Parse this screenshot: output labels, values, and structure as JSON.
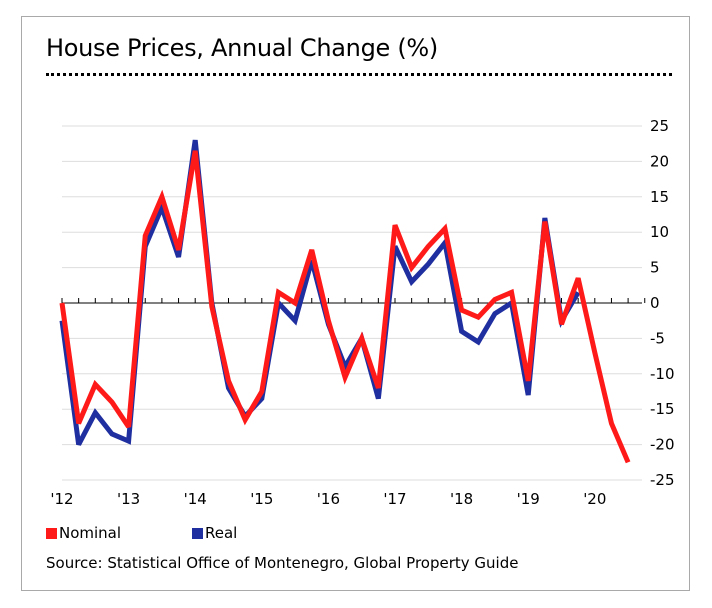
{
  "chart_data": {
    "type": "line",
    "title": "House Prices, Annual Change (%)",
    "ylim": [
      -25,
      25
    ],
    "yticks": [
      25,
      20,
      15,
      10,
      5,
      0,
      -5,
      -10,
      -15,
      -20,
      -25
    ],
    "ytick_labels": [
      "25",
      "20",
      "15",
      "10",
      "5",
      "0",
      "-5",
      "-10",
      "-15",
      "-20",
      "-25"
    ],
    "xtick_labels": [
      "'12",
      "'13",
      "'14",
      "'15",
      "'16",
      "'17",
      "'18",
      "'19",
      "'20"
    ],
    "grid": true,
    "legend_position": "bottom-left",
    "x": [
      "2012 Q1",
      "2012 Q2",
      "2012 Q3",
      "2012 Q4",
      "2013 Q1",
      "2013 Q2",
      "2013 Q3",
      "2013 Q4",
      "2014 Q1",
      "2014 Q2",
      "2014 Q3",
      "2014 Q4",
      "2015 Q1",
      "2015 Q2",
      "2015 Q3",
      "2015 Q4",
      "2016 Q1",
      "2016 Q2",
      "2016 Q3",
      "2016 Q4",
      "2017 Q1",
      "2017 Q2",
      "2017 Q3",
      "2017 Q4",
      "2018 Q1",
      "2018 Q2",
      "2018 Q3",
      "2018 Q4",
      "2019 Q1",
      "2019 Q2",
      "2019 Q3",
      "2019 Q4",
      "2020 Q1",
      "2020 Q2",
      "2020 Q3",
      "2020 Q4"
    ],
    "series": [
      {
        "name": "Real",
        "color": "#1f2f9f",
        "values": [
          -2.5,
          -20,
          -15.5,
          -18.5,
          -19.5,
          8,
          13.5,
          6.5,
          23,
          0,
          -12,
          -16,
          -13.5,
          0,
          -2.5,
          6,
          -3,
          -9,
          -5,
          -13.5,
          8,
          3,
          5.5,
          8.5,
          -4,
          -5.5,
          -1.5,
          0,
          -13,
          12,
          -2.5,
          1.5,
          null,
          null,
          null,
          null
        ]
      },
      {
        "name": "Nominal",
        "color": "#ff1a1a",
        "values": [
          0,
          -17,
          -11.5,
          -14,
          -17.5,
          9.5,
          15,
          7.5,
          21.5,
          -0.5,
          -11,
          -16.5,
          -12.5,
          1.5,
          0,
          7.5,
          -2.5,
          -10.5,
          -5,
          -12,
          11,
          5,
          8,
          10.5,
          -1,
          -2,
          0.5,
          1.5,
          -11,
          11.5,
          -3,
          3.5,
          -7,
          -17,
          -22.5,
          null
        ]
      }
    ]
  },
  "legend": {
    "nominal_label": "Nominal",
    "real_label": "Real"
  },
  "source": "Source: Statistical Office of Montenegro, Global Property Guide"
}
